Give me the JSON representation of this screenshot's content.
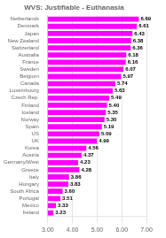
{
  "chart_data": {
    "type": "bar",
    "title": "WVS: Justifiable - Euthanasia",
    "orientation": "horizontal",
    "categories": [
      "Netherlands",
      "Denmark",
      "Japan",
      "New Zealand",
      "Switzerland",
      "Australia",
      "France",
      "Sweden",
      "Belgium",
      "Canada",
      "Luxembourg",
      "Czech Rep.",
      "Finland",
      "Iceland",
      "Norway",
      "Spain",
      "US",
      "UK",
      "Korea",
      "Austria",
      "Germany/West",
      "Greece",
      "Italy",
      "Hungary",
      "South Africa",
      "Portugal",
      "Mexico",
      "Ireland"
    ],
    "values": [
      6.69,
      6.61,
      6.43,
      6.38,
      6.36,
      6.18,
      6.16,
      6.07,
      5.97,
      5.74,
      5.63,
      5.49,
      5.4,
      5.35,
      5.3,
      5.19,
      5.09,
      4.99,
      4.56,
      4.37,
      4.23,
      4.28,
      3.86,
      3.83,
      3.6,
      3.51,
      3.33,
      3.23
    ],
    "value_labels": [
      "6.69",
      "6.61",
      "6.43",
      "6.38",
      "6.36",
      "6.18",
      "6.16",
      "6.07",
      "5.97",
      "5.74",
      "5.63",
      "5.49",
      "5.40",
      "5.35",
      "5.30",
      "5.19",
      "5.09",
      "4.99",
      "4.56",
      "4.37",
      "4.23",
      "4.28",
      "3.86",
      "3.83",
      "3.60",
      "3.51",
      "3.33",
      "3.23"
    ],
    "color": "#FF00FF",
    "data_labels": true,
    "grid": true,
    "xlim": [
      3.0,
      7.0
    ],
    "xticks": [
      {
        "value": 3,
        "label": "3.00"
      },
      {
        "value": 4,
        "label": "4.00"
      },
      {
        "value": 5,
        "label": "5.00"
      },
      {
        "value": 6,
        "label": "6.00"
      },
      {
        "value": 7,
        "label": "7.00"
      }
    ]
  }
}
